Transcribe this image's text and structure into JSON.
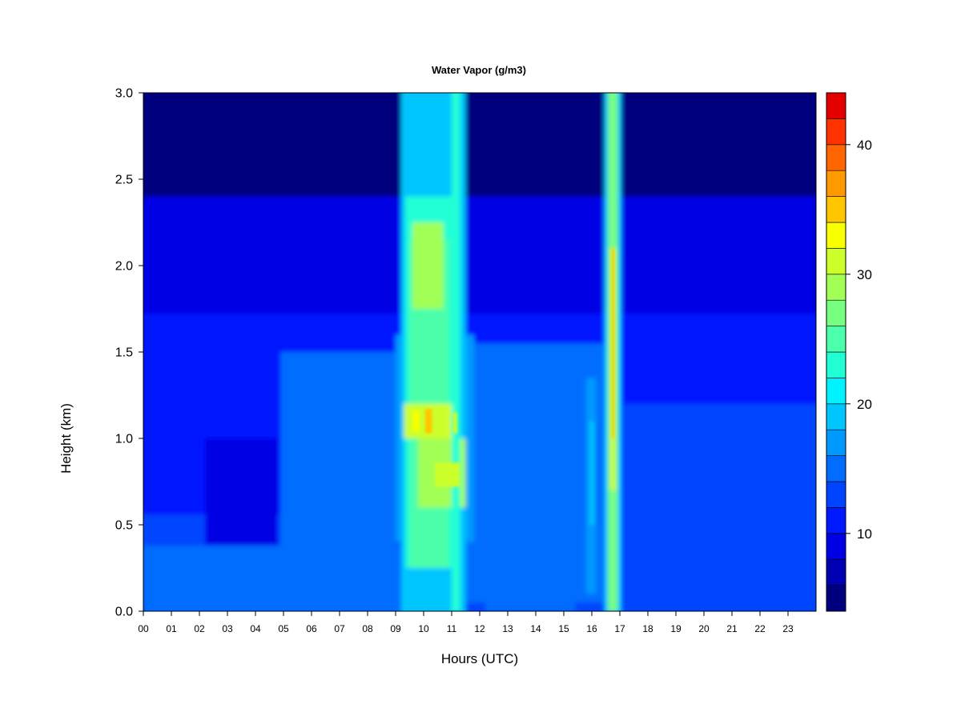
{
  "chart_data": {
    "type": "heatmap",
    "title": "Water Vapor (g/m3)",
    "xlabel": "Hours (UTC)",
    "ylabel": "Height (km)",
    "xlim": [
      0,
      24
    ],
    "ylim": [
      0,
      3
    ],
    "x_tick_labels": [
      "00",
      "01",
      "02",
      "03",
      "04",
      "05",
      "06",
      "07",
      "08",
      "09",
      "10",
      "11",
      "12",
      "13",
      "14",
      "15",
      "16",
      "17",
      "18",
      "19",
      "20",
      "21",
      "22",
      "23"
    ],
    "y_tick_labels": [
      "0.0",
      "0.5",
      "1.0",
      "1.5",
      "2.0",
      "2.5",
      "3.0"
    ],
    "colorbar": {
      "range": [
        4,
        44
      ],
      "levels": [
        4,
        6,
        8,
        10,
        12,
        14,
        16,
        18,
        20,
        22,
        24,
        26,
        28,
        30,
        32,
        34,
        36,
        38,
        40,
        42,
        44
      ],
      "tick_values": [
        10,
        20,
        30,
        40
      ],
      "tick_labels": [
        "10",
        "20",
        "30",
        "40"
      ],
      "colors": [
        "#00007f",
        "#0000b2",
        "#0000e5",
        "#0019ff",
        "#0044ff",
        "#006dff",
        "#0099ff",
        "#00c6ff",
        "#00f2ff",
        "#22ffd4",
        "#4cffaa",
        "#77ff7f",
        "#a2ff55",
        "#ccff2a",
        "#f8ff00",
        "#ffc600",
        "#ff9900",
        "#ff6600",
        "#ff3300",
        "#e50000",
        "#b20000",
        "#7f0000"
      ]
    },
    "features": [
      {
        "name": "moist plume",
        "x_range": [
          9.2,
          11.5
        ],
        "peak_value_g_m3": 32,
        "peak_heights_km": [
          2.0,
          1.1,
          0.8
        ]
      },
      {
        "name": "moist band",
        "x_range": [
          16.55,
          16.9
        ],
        "peak_value_g_m3": 34
      },
      {
        "name": "moist band",
        "x_range": [
          15.9,
          16.1
        ],
        "peak_value_g_m3": 18
      }
    ]
  }
}
